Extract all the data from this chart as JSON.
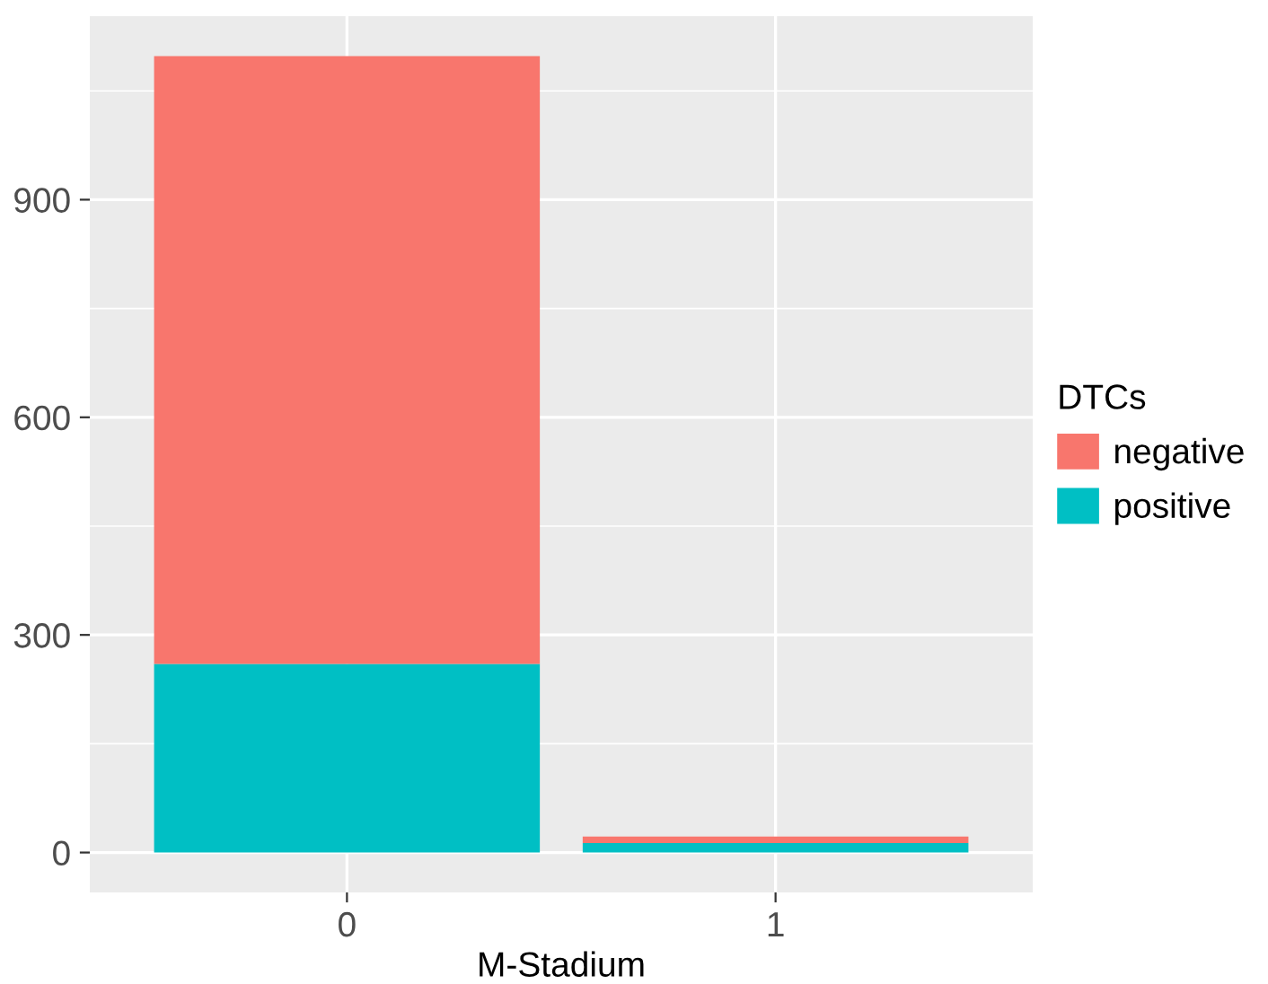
{
  "chart_data": {
    "type": "bar",
    "stacked": true,
    "xlabel": "M-Stadium",
    "legend_title": "DTCs",
    "categories": [
      "0",
      "1"
    ],
    "series": [
      {
        "name": "positive",
        "color": "#00bfc4",
        "values": [
          260,
          13
        ]
      },
      {
        "name": "negative",
        "color": "#f8766d",
        "values": [
          838,
          9
        ]
      }
    ],
    "ylim": [
      -55,
      1153
    ],
    "yticks": [
      0,
      300,
      600,
      900
    ],
    "grid": true,
    "legend": "right"
  }
}
